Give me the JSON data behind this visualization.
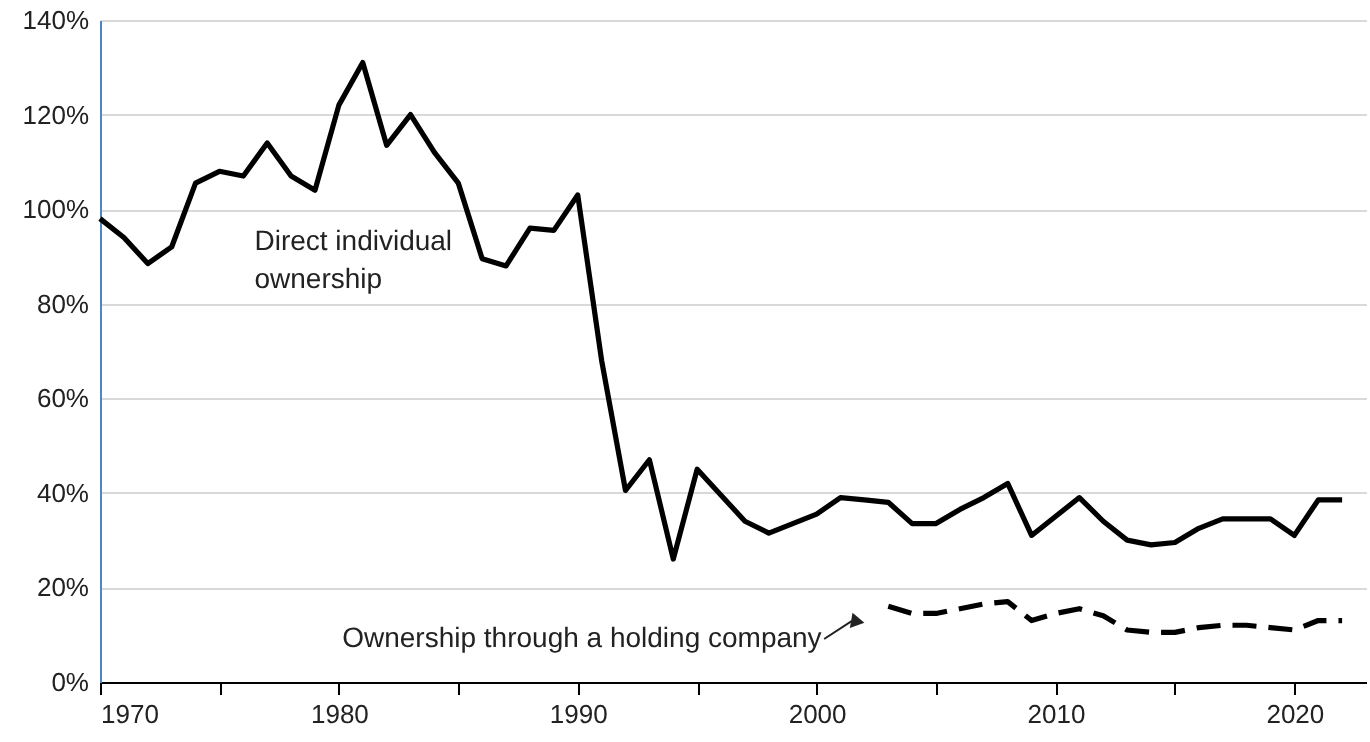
{
  "chart_data": {
    "type": "line",
    "x": [
      1970,
      1971,
      1972,
      1973,
      1974,
      1975,
      1976,
      1977,
      1978,
      1979,
      1980,
      1981,
      1982,
      1983,
      1984,
      1985,
      1986,
      1987,
      1988,
      1989,
      1990,
      1991,
      1992,
      1993,
      1994,
      1995,
      1996,
      1997,
      1998,
      1999,
      2000,
      2001,
      2002,
      2003,
      2004,
      2005,
      2006,
      2007,
      2008,
      2009,
      2010,
      2011,
      2012,
      2013,
      2014,
      2015,
      2016,
      2017,
      2018,
      2019,
      2020,
      2021,
      2022
    ],
    "series": [
      {
        "name": "Direct individual ownership",
        "color": "#000000",
        "line_style": "solid",
        "values": [
          98,
          94,
          88.5,
          92,
          105.5,
          108,
          107,
          114,
          107,
          104,
          122,
          131,
          113.5,
          120,
          112,
          105.5,
          89.5,
          88,
          96,
          95.5,
          103,
          68,
          40.5,
          47,
          26,
          45,
          39.5,
          34,
          31.5,
          33.5,
          35.5,
          39,
          38.5,
          38,
          33.5,
          33.5,
          36.5,
          39,
          42,
          31,
          35,
          39,
          34,
          30,
          29,
          29.5,
          32.5,
          34.5,
          34.5,
          34.5,
          31,
          38.5,
          38.5
        ]
      },
      {
        "name": "Ownership through a holding company",
        "color": "#000000",
        "line_style": "dashed",
        "values": [
          null,
          null,
          null,
          null,
          null,
          null,
          null,
          null,
          null,
          null,
          null,
          null,
          null,
          null,
          null,
          null,
          null,
          null,
          null,
          null,
          null,
          null,
          null,
          null,
          null,
          null,
          null,
          null,
          null,
          null,
          null,
          null,
          null,
          16,
          14.5,
          14.5,
          15.5,
          16.5,
          17,
          13,
          14.5,
          15.5,
          14,
          11,
          10.5,
          10.5,
          11.5,
          12,
          12,
          11.5,
          11,
          13,
          13
        ]
      }
    ],
    "xlim": [
      1970,
      2023
    ],
    "xticks": [
      1970,
      {
        "value": 1975,
        "label": null
      },
      1980,
      {
        "value": 1985,
        "label": null
      },
      1990,
      {
        "value": 1995,
        "label": null
      },
      2000,
      {
        "value": 2005,
        "label": null
      },
      2010,
      {
        "value": 2015,
        "label": null
      },
      2020
    ],
    "ylim": [
      0,
      140
    ],
    "yticks": [
      {
        "value": 0,
        "label": "0%"
      },
      {
        "value": 20,
        "label": "20%"
      },
      {
        "value": 40,
        "label": "40%"
      },
      {
        "value": 60,
        "label": "60%"
      },
      {
        "value": 80,
        "label": "80%"
      },
      {
        "value": 100,
        "label": "100%"
      },
      {
        "value": 120,
        "label": "120%"
      },
      {
        "value": 140,
        "label": "140%"
      }
    ],
    "grid": "y",
    "marker": "none"
  }
}
